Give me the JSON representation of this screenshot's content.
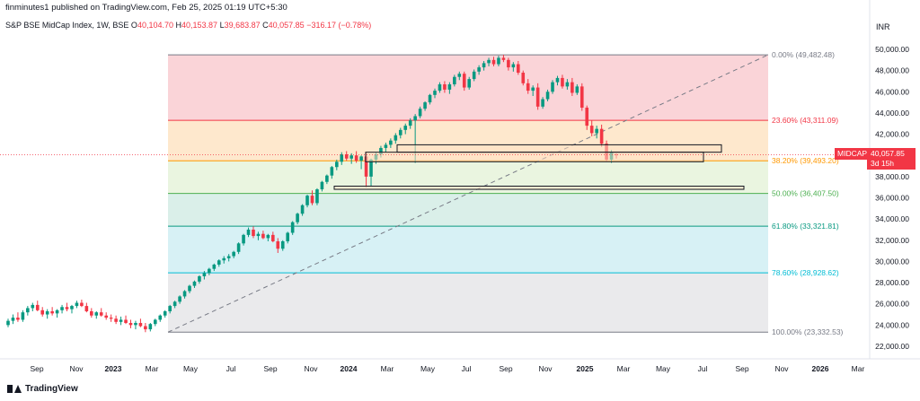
{
  "header": {
    "text": "finminutes1 published on TradingView.com, Feb 25, 2025 01:19 UTC+5:30"
  },
  "legend": {
    "symbol": "S&P BSE MidCap Index, 1W, BSE",
    "open_label": "O",
    "open": "40,104.70",
    "high_label": "H",
    "high": "40,153.87",
    "low_label": "L",
    "low": "39,683.87",
    "close_label": "C",
    "close": "40,057.85",
    "change": "−316.17 (−0.78%)"
  },
  "currency": "INR",
  "price_tag": {
    "symbol": "MIDCAP",
    "price": "40,057.85",
    "countdown": "3d 15h"
  },
  "footer": {
    "brand": "TradingView"
  },
  "colors": {
    "up": "#089981",
    "down": "#f23645",
    "fib_0": "#787b86",
    "fib_236": "#f23645",
    "fib_382": "#ff9800",
    "fib_500": "#4caf50",
    "fib_618": "#089981",
    "fib_786": "#00bcd4",
    "fib_100": "#787b86"
  },
  "chart_data": {
    "type": "candlestick",
    "y_axis_ticks": [
      "50,000.00",
      "48,000.00",
      "46,000.00",
      "44,000.00",
      "42,000.00",
      "40,000.00",
      "38,000.00",
      "36,000.00",
      "34,000.00",
      "32,000.00",
      "30,000.00",
      "28,000.00",
      "26,000.00",
      "24,000.00",
      "22,000.00"
    ],
    "x_axis_ticks": [
      "Sep",
      "Nov",
      "2023",
      "Mar",
      "May",
      "Jul",
      "Sep",
      "Nov",
      "2024",
      "Mar",
      "May",
      "Jul",
      "Sep",
      "Nov",
      "2025",
      "Mar",
      "May",
      "Jul",
      "Sep",
      "Nov",
      "2026",
      "Mar"
    ],
    "fib_levels": [
      {
        "label": "0.00% (49,482.48)",
        "value": 49482.48
      },
      {
        "label": "23.60% (43,311.09)",
        "value": 43311.09
      },
      {
        "label": "38.20% (39,493.20)",
        "value": 39493.2
      },
      {
        "label": "50.00% (36,407.50)",
        "value": 36407.5
      },
      {
        "label": "61.80% (33,321.81)",
        "value": 33321.81
      },
      {
        "label": "78.60% (28,928.62)",
        "value": 28928.62
      },
      {
        "label": "100.00% (23,332.53)",
        "value": 23332.53
      }
    ],
    "zones": [
      {
        "from": 40300,
        "to": 41000
      },
      {
        "from": 39400,
        "to": 40300
      },
      {
        "from": 36800,
        "to": 37100
      }
    ],
    "series": [
      {
        "values": [
          [
            24000,
            24600,
            23800,
            24400
          ],
          [
            24400,
            25000,
            24100,
            24700
          ],
          [
            24700,
            25200,
            24300,
            24500
          ],
          [
            24500,
            25400,
            24300,
            25200
          ],
          [
            25200,
            25800,
            24900,
            25600
          ],
          [
            25600,
            26100,
            25300,
            25900
          ],
          [
            25900,
            26300,
            25300,
            25400
          ],
          [
            25400,
            25700,
            24800,
            25000
          ],
          [
            25000,
            25500,
            24600,
            25300
          ],
          [
            25300,
            25700,
            24900,
            25100
          ],
          [
            25100,
            25500,
            24700,
            25400
          ],
          [
            25400,
            25900,
            25100,
            25700
          ],
          [
            25700,
            26100,
            25300,
            25500
          ],
          [
            25500,
            25900,
            25100,
            25800
          ],
          [
            25800,
            26300,
            25600,
            26100
          ],
          [
            26100,
            26400,
            25700,
            25800
          ],
          [
            25800,
            26100,
            25200,
            25300
          ],
          [
            25300,
            25600,
            24700,
            24900
          ],
          [
            24900,
            25300,
            24600,
            25200
          ],
          [
            25200,
            25600,
            24800,
            24900
          ],
          [
            24900,
            25200,
            24500,
            24700
          ],
          [
            24700,
            25000,
            24300,
            24600
          ],
          [
            24600,
            24900,
            24100,
            24300
          ],
          [
            24300,
            24800,
            24000,
            24500
          ],
          [
            24500,
            24900,
            24100,
            24200
          ],
          [
            24200,
            24500,
            23700,
            24000
          ],
          [
            24000,
            24400,
            23600,
            24200
          ],
          [
            24200,
            24600,
            23800,
            23900
          ],
          [
            23900,
            24200,
            23330,
            23600
          ],
          [
            23600,
            24200,
            23400,
            24100
          ],
          [
            24100,
            24600,
            23900,
            24500
          ],
          [
            24500,
            25000,
            24300,
            24900
          ],
          [
            24900,
            25400,
            24700,
            25300
          ],
          [
            25300,
            25900,
            25100,
            25800
          ],
          [
            25800,
            26300,
            25600,
            26200
          ],
          [
            26200,
            26800,
            26000,
            26700
          ],
          [
            26700,
            27300,
            26500,
            27200
          ],
          [
            27200,
            27800,
            27000,
            27700
          ],
          [
            27700,
            28200,
            27500,
            28100
          ],
          [
            28100,
            28700,
            27900,
            28600
          ],
          [
            28600,
            29100,
            28300,
            28900
          ],
          [
            28900,
            29400,
            28700,
            29300
          ],
          [
            29300,
            29800,
            29100,
            29700
          ],
          [
            29700,
            30200,
            29500,
            30100
          ],
          [
            30100,
            30500,
            29800,
            30300
          ],
          [
            30300,
            30700,
            30000,
            30500
          ],
          [
            30500,
            31000,
            30300,
            30900
          ],
          [
            30900,
            31800,
            30700,
            31700
          ],
          [
            31700,
            32600,
            31500,
            32500
          ],
          [
            32500,
            33200,
            32300,
            33000
          ],
          [
            33000,
            33300,
            32200,
            32400
          ],
          [
            32400,
            32800,
            32000,
            32600
          ],
          [
            32600,
            32900,
            32100,
            32200
          ],
          [
            32200,
            32600,
            31900,
            32500
          ],
          [
            32500,
            32800,
            31800,
            31900
          ],
          [
            31900,
            32200,
            30800,
            31200
          ],
          [
            31200,
            32000,
            31000,
            31900
          ],
          [
            31900,
            32800,
            31700,
            32700
          ],
          [
            32700,
            33800,
            32500,
            33700
          ],
          [
            33700,
            34600,
            33500,
            34500
          ],
          [
            34500,
            35400,
            34300,
            35300
          ],
          [
            35300,
            36300,
            35100,
            36200
          ],
          [
            36200,
            36700,
            35300,
            35500
          ],
          [
            35500,
            36900,
            35300,
            36800
          ],
          [
            36800,
            37600,
            36600,
            37500
          ],
          [
            37500,
            38200,
            37300,
            38100
          ],
          [
            38100,
            39000,
            37800,
            38900
          ],
          [
            38900,
            39600,
            38600,
            39400
          ],
          [
            39400,
            40300,
            39100,
            40100
          ],
          [
            40100,
            40400,
            39500,
            39700
          ],
          [
            39700,
            40200,
            39200,
            40000
          ],
          [
            40000,
            40400,
            39300,
            39500
          ],
          [
            39500,
            40000,
            38700,
            39900
          ],
          [
            39900,
            40300,
            37000,
            38000
          ],
          [
            38000,
            39700,
            37100,
            39600
          ],
          [
            39600,
            40300,
            39200,
            40100
          ],
          [
            40100,
            40900,
            39800,
            40700
          ],
          [
            40700,
            41200,
            40300,
            41000
          ],
          [
            41000,
            41600,
            40700,
            41400
          ],
          [
            41400,
            42100,
            41100,
            41900
          ],
          [
            41900,
            42600,
            41600,
            42400
          ],
          [
            42400,
            43000,
            42000,
            42800
          ],
          [
            42800,
            43500,
            42500,
            43300
          ],
          [
            43300,
            43900,
            39300,
            43700
          ],
          [
            43700,
            44600,
            43500,
            44400
          ],
          [
            44400,
            45100,
            44200,
            45000
          ],
          [
            45000,
            45800,
            44800,
            45700
          ],
          [
            45700,
            46300,
            45400,
            46100
          ],
          [
            46100,
            46900,
            45900,
            46700
          ],
          [
            46700,
            47000,
            45900,
            46200
          ],
          [
            46200,
            46900,
            45800,
            46700
          ],
          [
            46700,
            47600,
            46500,
            47400
          ],
          [
            47400,
            47900,
            47100,
            47700
          ],
          [
            47700,
            47900,
            46100,
            46400
          ],
          [
            46400,
            47400,
            46200,
            47200
          ],
          [
            47200,
            48100,
            47000,
            47900
          ],
          [
            47900,
            48500,
            47600,
            48300
          ],
          [
            48300,
            48900,
            48000,
            48700
          ],
          [
            48700,
            49200,
            48400,
            49000
          ],
          [
            49000,
            49300,
            48400,
            48600
          ],
          [
            48600,
            49400,
            48400,
            49200
          ],
          [
            49200,
            49482,
            48800,
            49000
          ],
          [
            49000,
            49200,
            48000,
            48300
          ],
          [
            48300,
            48800,
            47900,
            48600
          ],
          [
            48600,
            48900,
            47600,
            47800
          ],
          [
            47800,
            48000,
            46600,
            46800
          ],
          [
            46800,
            47200,
            45800,
            46100
          ],
          [
            46100,
            46600,
            45600,
            46400
          ],
          [
            46400,
            46800,
            44300,
            44600
          ],
          [
            44600,
            45500,
            44400,
            45300
          ],
          [
            45300,
            46200,
            45100,
            46000
          ],
          [
            46000,
            47100,
            45800,
            46900
          ],
          [
            46900,
            47500,
            46600,
            47300
          ],
          [
            47300,
            47600,
            46300,
            46500
          ],
          [
            46500,
            47200,
            46200,
            46900
          ],
          [
            46900,
            47300,
            45600,
            45900
          ],
          [
            45900,
            46700,
            45700,
            46500
          ],
          [
            46500,
            46800,
            44200,
            44500
          ],
          [
            44500,
            44700,
            42400,
            42800
          ],
          [
            42800,
            43300,
            41800,
            42100
          ],
          [
            42100,
            42800,
            41600,
            42500
          ],
          [
            42500,
            42900,
            40800,
            41100
          ],
          [
            41100,
            41400,
            39400,
            39600
          ],
          [
            39600,
            40500,
            39300,
            40300
          ],
          [
            40100,
            40200,
            39700,
            40058
          ]
        ]
      }
    ]
  }
}
